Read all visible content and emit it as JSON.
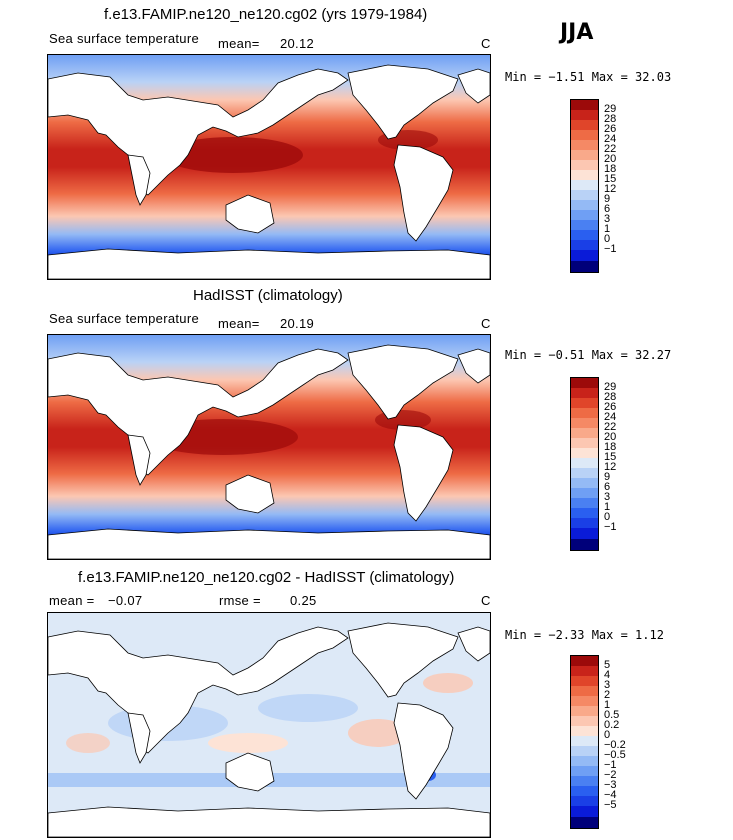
{
  "season": "JJA",
  "palettes": {
    "sst": [
      "#00007a",
      "#0a1bd8",
      "#1a3fe6",
      "#2a5ff0",
      "#4a80f2",
      "#6f9ff4",
      "#94baf5",
      "#b9d2f6",
      "#dde9f7",
      "#fde3d6",
      "#fcc7b2",
      "#f9a98a",
      "#f58965",
      "#ee6b45",
      "#e0452a",
      "#c8231a",
      "#9c0a0a"
    ],
    "diff": [
      "#00007a",
      "#0a1bd8",
      "#1a3fe6",
      "#2a5ff0",
      "#4a80f2",
      "#6f9ff4",
      "#94baf5",
      "#b9d2f6",
      "#dde9f7",
      "#fde3d6",
      "#fcc7b2",
      "#f9a98a",
      "#f58965",
      "#ee6b45",
      "#e0452a",
      "#c8231a",
      "#9c0a0a"
    ]
  },
  "panels": [
    {
      "title": "f.e13.FAMIP.ne120_ne120.cg02 (yrs 1979-1984)",
      "field": "Sea surface temperature",
      "mean_label": "mean=",
      "mean_value": "20.12",
      "units": "C",
      "min_max": "Min =  −1.51 Max =  32.03",
      "colorbar_ticks": [
        "29",
        "28",
        "26",
        "24",
        "22",
        "20",
        "18",
        "15",
        "12",
        "9",
        "6",
        "3",
        "1",
        "0",
        "−1"
      ]
    },
    {
      "title": "HadISST (climatology)",
      "field": "Sea surface temperature",
      "mean_label": "mean=",
      "mean_value": "20.19",
      "units": "C",
      "min_max": "Min =  −0.51 Max =  32.27",
      "colorbar_ticks": [
        "29",
        "28",
        "26",
        "24",
        "22",
        "20",
        "18",
        "15",
        "12",
        "9",
        "6",
        "3",
        "1",
        "0",
        "−1"
      ]
    },
    {
      "title": "f.e13.FAMIP.ne120_ne120.cg02 - HadISST (climatology)",
      "mean_label": "mean =",
      "mean_value": "−0.07",
      "rmse_label": "rmse =",
      "rmse_value": "0.25",
      "units": "C",
      "min_max": "Min =  −2.33 Max =   1.12",
      "colorbar_ticks": [
        "5",
        "4",
        "3",
        "2",
        "1",
        "0.5",
        "0.2",
        "0",
        "−0.2",
        "−0.5",
        "−1",
        "−2",
        "−3",
        "−4",
        "−5"
      ]
    }
  ]
}
